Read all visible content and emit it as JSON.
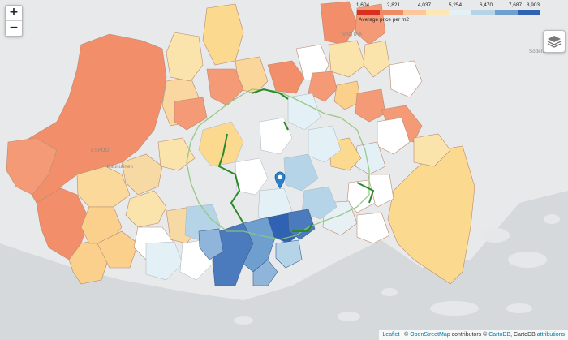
{
  "map": {
    "zoom_in": "+",
    "zoom_out": "−",
    "legend": {
      "ticks": [
        "1,604",
        "2,821",
        "4,037",
        "5,254",
        "6,470",
        "7,687",
        "8,903"
      ],
      "colors": [
        "#d7301f",
        "#ef8a62",
        "#fcc79a",
        "#fde7b5",
        "#e3f0f5",
        "#b6d4e8",
        "#6f9fcf",
        "#2f62b3"
      ],
      "caption": "Average price per m2"
    },
    "places": {
      "vantaa": "VANTAA",
      "espoo": "ESPOO",
      "kauniainen": "Kauniainen",
      "soderkulla": "Söderkulla"
    },
    "layers_icon": "layers-icon",
    "marker_icon": "map-marker-icon",
    "attribution": {
      "leaflet": "Leaflet",
      "sep1": " | © ",
      "osm": "OpenStreetMap",
      "mid": " contributors © ",
      "cartodb": "CartoDB",
      "sep2": ", CartoDB ",
      "attributions": "attributions"
    }
  }
}
